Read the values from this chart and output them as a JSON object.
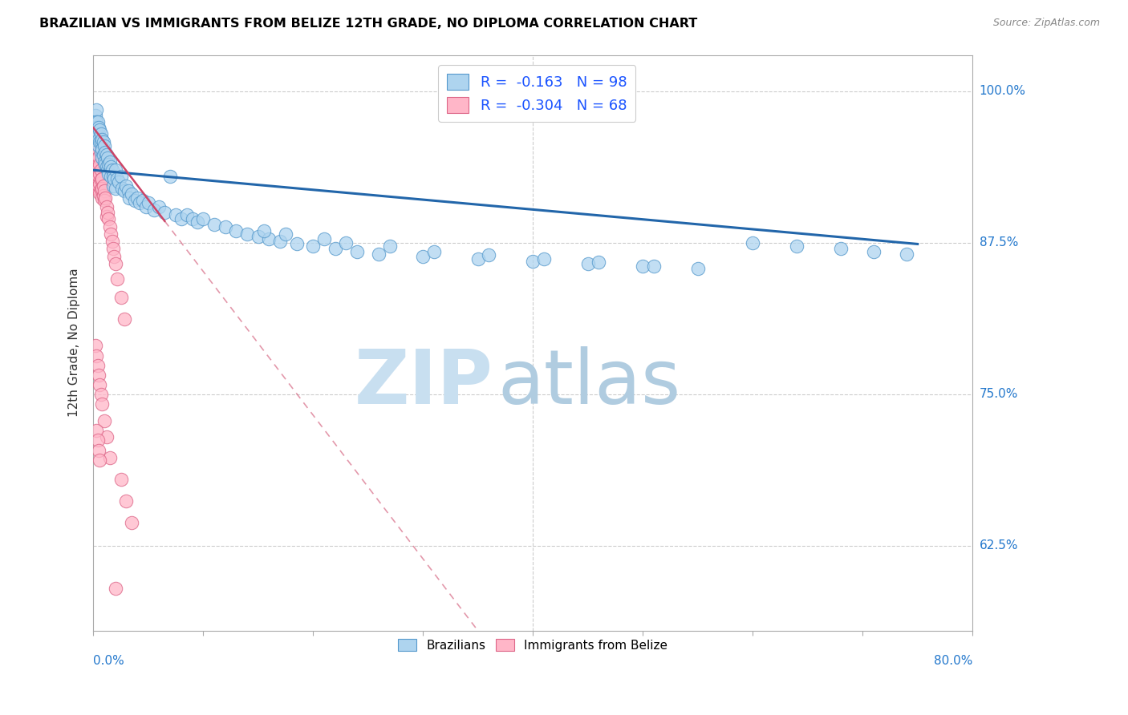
{
  "title": "BRAZILIAN VS IMMIGRANTS FROM BELIZE 12TH GRADE, NO DIPLOMA CORRELATION CHART",
  "source": "Source: ZipAtlas.com",
  "ylabel": "12th Grade, No Diploma",
  "ytick_labels": [
    "100.0%",
    "87.5%",
    "75.0%",
    "62.5%"
  ],
  "ytick_values": [
    1.0,
    0.875,
    0.75,
    0.625
  ],
  "xmin": 0.0,
  "xmax": 0.8,
  "ymin": 0.555,
  "ymax": 1.03,
  "blue_R": -0.163,
  "blue_N": 98,
  "pink_R": -0.304,
  "pink_N": 68,
  "blue_fill": "#aed4ef",
  "blue_edge": "#5599cc",
  "pink_fill": "#ffb6c8",
  "pink_edge": "#dd6688",
  "blue_line_color": "#2266aa",
  "pink_line_color": "#cc4466",
  "legend_R_color": "#1a53ff",
  "watermark_zip_color": "#c8dff0",
  "watermark_atlas_color": "#b0cce0",
  "blue_x": [
    0.001,
    0.002,
    0.002,
    0.003,
    0.003,
    0.003,
    0.004,
    0.004,
    0.005,
    0.005,
    0.005,
    0.006,
    0.006,
    0.007,
    0.007,
    0.007,
    0.008,
    0.008,
    0.008,
    0.009,
    0.009,
    0.01,
    0.01,
    0.011,
    0.011,
    0.012,
    0.012,
    0.013,
    0.013,
    0.014,
    0.014,
    0.015,
    0.016,
    0.016,
    0.017,
    0.018,
    0.018,
    0.019,
    0.02,
    0.02,
    0.022,
    0.023,
    0.025,
    0.026,
    0.028,
    0.03,
    0.032,
    0.033,
    0.035,
    0.038,
    0.04,
    0.042,
    0.045,
    0.048,
    0.05,
    0.055,
    0.06,
    0.065,
    0.07,
    0.075,
    0.08,
    0.085,
    0.09,
    0.095,
    0.1,
    0.11,
    0.12,
    0.13,
    0.14,
    0.15,
    0.16,
    0.17,
    0.185,
    0.2,
    0.22,
    0.24,
    0.26,
    0.3,
    0.35,
    0.4,
    0.45,
    0.5,
    0.55,
    0.6,
    0.64,
    0.68,
    0.71,
    0.74,
    0.155,
    0.175,
    0.21,
    0.23,
    0.27,
    0.31,
    0.36,
    0.41,
    0.46,
    0.51
  ],
  "blue_y": [
    0.96,
    0.98,
    0.975,
    0.985,
    0.975,
    0.97,
    0.975,
    0.965,
    0.97,
    0.96,
    0.955,
    0.968,
    0.958,
    0.965,
    0.958,
    0.95,
    0.96,
    0.952,
    0.945,
    0.958,
    0.948,
    0.955,
    0.942,
    0.95,
    0.94,
    0.948,
    0.938,
    0.945,
    0.935,
    0.94,
    0.932,
    0.942,
    0.938,
    0.93,
    0.935,
    0.93,
    0.922,
    0.928,
    0.935,
    0.92,
    0.928,
    0.925,
    0.93,
    0.92,
    0.918,
    0.922,
    0.918,
    0.912,
    0.915,
    0.91,
    0.912,
    0.908,
    0.91,
    0.905,
    0.908,
    0.902,
    0.905,
    0.9,
    0.93,
    0.898,
    0.895,
    0.898,
    0.895,
    0.892,
    0.895,
    0.89,
    0.888,
    0.885,
    0.882,
    0.88,
    0.878,
    0.876,
    0.874,
    0.872,
    0.87,
    0.868,
    0.866,
    0.864,
    0.862,
    0.86,
    0.858,
    0.856,
    0.854,
    0.875,
    0.872,
    0.87,
    0.868,
    0.866,
    0.885,
    0.882,
    0.878,
    0.875,
    0.872,
    0.868,
    0.865,
    0.862,
    0.859,
    0.856
  ],
  "pink_x": [
    0.001,
    0.001,
    0.001,
    0.002,
    0.002,
    0.002,
    0.002,
    0.003,
    0.003,
    0.003,
    0.003,
    0.003,
    0.003,
    0.004,
    0.004,
    0.004,
    0.004,
    0.004,
    0.005,
    0.005,
    0.005,
    0.005,
    0.006,
    0.006,
    0.006,
    0.006,
    0.007,
    0.007,
    0.007,
    0.008,
    0.008,
    0.008,
    0.009,
    0.009,
    0.01,
    0.01,
    0.011,
    0.012,
    0.012,
    0.013,
    0.014,
    0.015,
    0.016,
    0.017,
    0.018,
    0.019,
    0.02,
    0.022,
    0.025,
    0.028,
    0.002,
    0.003,
    0.004,
    0.005,
    0.006,
    0.007,
    0.008,
    0.01,
    0.012,
    0.015,
    0.003,
    0.004,
    0.005,
    0.006,
    0.025,
    0.03,
    0.035,
    0.02
  ],
  "pink_y": [
    0.965,
    0.958,
    0.95,
    0.962,
    0.955,
    0.948,
    0.94,
    0.958,
    0.95,
    0.942,
    0.935,
    0.928,
    0.92,
    0.952,
    0.944,
    0.936,
    0.928,
    0.92,
    0.946,
    0.938,
    0.93,
    0.922,
    0.94,
    0.932,
    0.924,
    0.916,
    0.935,
    0.927,
    0.919,
    0.928,
    0.92,
    0.912,
    0.922,
    0.914,
    0.918,
    0.91,
    0.912,
    0.905,
    0.897,
    0.9,
    0.895,
    0.888,
    0.882,
    0.876,
    0.87,
    0.864,
    0.858,
    0.845,
    0.83,
    0.812,
    0.79,
    0.782,
    0.774,
    0.766,
    0.758,
    0.75,
    0.742,
    0.728,
    0.715,
    0.698,
    0.72,
    0.712,
    0.704,
    0.696,
    0.68,
    0.662,
    0.644,
    0.59
  ],
  "blue_line_x0": 0.0,
  "blue_line_x1": 0.75,
  "blue_line_y0": 0.935,
  "blue_line_y1": 0.874,
  "pink_line_x0": 0.0,
  "pink_line_x1": 0.35,
  "pink_line_y0": 0.97,
  "pink_line_y1": 0.555
}
